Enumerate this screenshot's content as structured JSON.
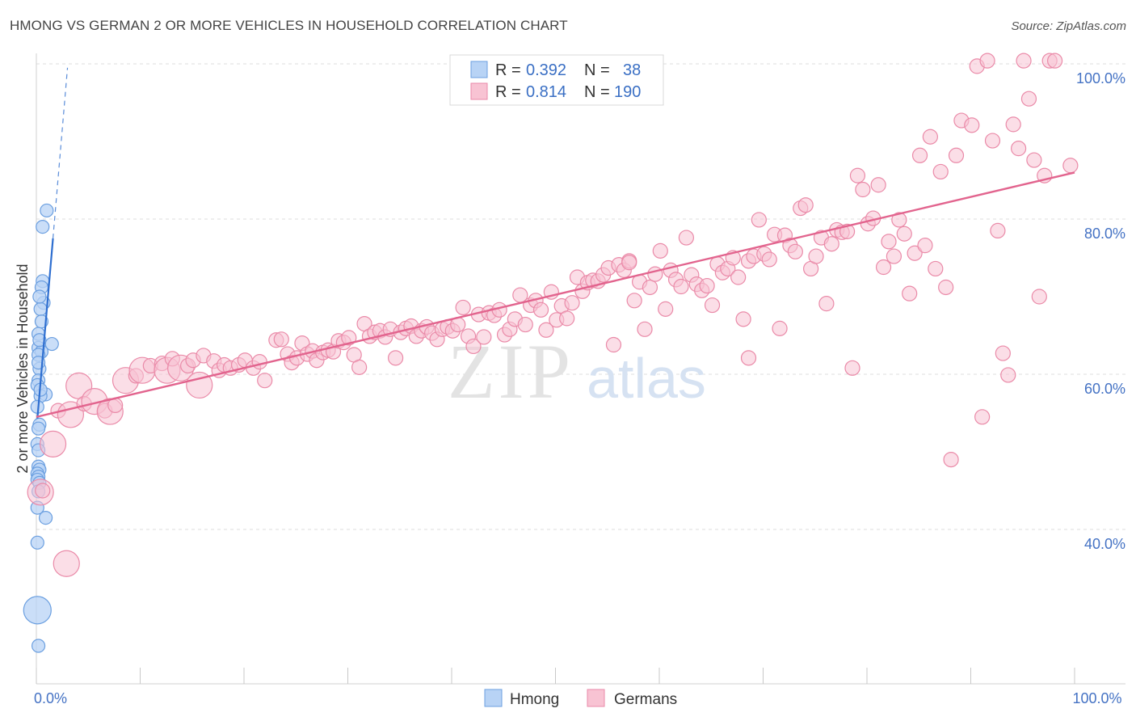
{
  "title": "HMONG VS GERMAN 2 OR MORE VEHICLES IN HOUSEHOLD CORRELATION CHART",
  "source": "Source: ZipAtlas.com",
  "watermark": {
    "zip": "ZIP",
    "atlas": "atlas"
  },
  "colors": {
    "hmong_fill": "#b8d3f5",
    "hmong_stroke": "#6b9fe0",
    "hmong_line": "#2f6fd0",
    "german_fill": "#f8c3d3",
    "german_stroke": "#ea8aa8",
    "german_line": "#e2648e",
    "grid": "#dcdcdc",
    "label": "#4472c4"
  },
  "legend": {
    "rows": [
      {
        "r_label": "R = ",
        "r_value": "0.392",
        "n_label": "N = ",
        "n_value": "38",
        "series": "hmong"
      },
      {
        "r_label": "R = ",
        "r_value": "0.814",
        "n_label": "N = ",
        "n_value": "190",
        "series": "german"
      }
    ]
  },
  "chart_data": {
    "type": "scatter",
    "title": "HMONG VS GERMAN 2 OR MORE VEHICLES IN HOUSEHOLD CORRELATION CHART",
    "xlabel": "",
    "ylabel": "2 or more Vehicles in Household",
    "xlim": [
      0,
      100
    ],
    "ylim": [
      18,
      102
    ],
    "x_ticks": [
      0,
      10,
      20,
      30,
      40,
      50,
      60,
      70,
      80,
      90,
      100
    ],
    "x_tick_labels": [
      {
        "value": 0,
        "label": "0.0%"
      },
      {
        "value": 100,
        "label": "100.0%"
      }
    ],
    "y_ticks": [
      {
        "value": 40,
        "label": "40.0%"
      },
      {
        "value": 60,
        "label": "60.0%"
      },
      {
        "value": 80,
        "label": "80.0%"
      },
      {
        "value": 100,
        "label": "100.0%"
      }
    ],
    "grid": true,
    "series": [
      {
        "name": "Hmong",
        "key": "hmong",
        "R": 0.392,
        "N": 38,
        "trend": {
          "x": [
            0.1,
            1.6
          ],
          "y": [
            54.3,
            77.5
          ]
        },
        "trend_ext": {
          "x": [
            1.6,
            3.0
          ],
          "y": [
            77.5,
            99.5
          ]
        },
        "points": [
          [
            1.0,
            81.1
          ],
          [
            0.6,
            79.0
          ],
          [
            0.6,
            72.0
          ],
          [
            0.5,
            71.2
          ],
          [
            0.7,
            69.2
          ],
          [
            0.4,
            68.4
          ],
          [
            1.5,
            63.9
          ],
          [
            0.2,
            65.2
          ],
          [
            0.2,
            63.4
          ],
          [
            0.5,
            62.9
          ],
          [
            0.2,
            62.5
          ],
          [
            0.3,
            60.7
          ],
          [
            0.2,
            59.2
          ],
          [
            0.1,
            58.6
          ],
          [
            0.9,
            57.4
          ],
          [
            0.4,
            57.2
          ],
          [
            0.3,
            53.5
          ],
          [
            0.2,
            53.0
          ],
          [
            0.1,
            51.0
          ],
          [
            0.2,
            48.1
          ],
          [
            0.3,
            47.7
          ],
          [
            0.1,
            47.2
          ],
          [
            0.2,
            46.8
          ],
          [
            0.1,
            46.4
          ],
          [
            0.3,
            46.0
          ],
          [
            0.9,
            41.5
          ],
          [
            0.1,
            38.3
          ],
          [
            0.1,
            29.6
          ],
          [
            0.2,
            25.0
          ],
          [
            0.3,
            64.4
          ],
          [
            0.2,
            61.5
          ],
          [
            0.4,
            58.0
          ],
          [
            0.1,
            55.8
          ],
          [
            0.2,
            50.2
          ],
          [
            0.5,
            66.8
          ],
          [
            0.3,
            70.0
          ],
          [
            0.1,
            42.8
          ],
          [
            0.2,
            44.9
          ]
        ],
        "big_points": [
          [
            0.1,
            29.6
          ]
        ]
      },
      {
        "name": "Germans",
        "key": "german",
        "R": 0.814,
        "N": 190,
        "trend": {
          "x": [
            0,
            100
          ],
          "y": [
            54.5,
            86.0
          ]
        },
        "points": [
          [
            0.4,
            44.8
          ],
          [
            0.6,
            45.0
          ],
          [
            1.6,
            51.0
          ],
          [
            2.9,
            35.6
          ],
          [
            2.1,
            55.3
          ],
          [
            3.3,
            54.8
          ],
          [
            4.1,
            58.5
          ],
          [
            4.6,
            56.2
          ],
          [
            5.6,
            56.5
          ],
          [
            6.6,
            55.3
          ],
          [
            7.1,
            55.2
          ],
          [
            7.6,
            56.0
          ],
          [
            8.6,
            59.2
          ],
          [
            9.6,
            59.8
          ],
          [
            10.2,
            60.5
          ],
          [
            11.0,
            61.1
          ],
          [
            12.1,
            61.4
          ],
          [
            12.6,
            60.5
          ],
          [
            13.1,
            62.0
          ],
          [
            13.9,
            60.8
          ],
          [
            14.6,
            61.1
          ],
          [
            15.1,
            61.8
          ],
          [
            15.7,
            58.6
          ],
          [
            16.1,
            62.4
          ],
          [
            17.1,
            61.7
          ],
          [
            17.6,
            60.5
          ],
          [
            18.1,
            61.2
          ],
          [
            18.7,
            60.8
          ],
          [
            19.5,
            61.2
          ],
          [
            20.1,
            61.8
          ],
          [
            20.9,
            60.8
          ],
          [
            21.5,
            61.6
          ],
          [
            22.0,
            59.2
          ],
          [
            23.1,
            64.4
          ],
          [
            23.6,
            64.5
          ],
          [
            24.2,
            62.6
          ],
          [
            24.6,
            61.5
          ],
          [
            25.1,
            62.1
          ],
          [
            25.6,
            64.0
          ],
          [
            26.1,
            62.6
          ],
          [
            26.6,
            63.0
          ],
          [
            27.0,
            61.8
          ],
          [
            27.6,
            62.8
          ],
          [
            28.1,
            63.1
          ],
          [
            28.6,
            62.9
          ],
          [
            29.1,
            64.3
          ],
          [
            29.6,
            64.1
          ],
          [
            30.1,
            64.7
          ],
          [
            30.6,
            62.5
          ],
          [
            31.1,
            60.9
          ],
          [
            31.6,
            66.5
          ],
          [
            32.1,
            64.9
          ],
          [
            32.6,
            65.4
          ],
          [
            33.1,
            65.6
          ],
          [
            33.6,
            64.8
          ],
          [
            34.1,
            65.8
          ],
          [
            34.6,
            62.1
          ],
          [
            35.1,
            65.4
          ],
          [
            35.6,
            65.9
          ],
          [
            36.1,
            66.2
          ],
          [
            36.6,
            64.9
          ],
          [
            37.1,
            65.6
          ],
          [
            37.6,
            66.1
          ],
          [
            38.1,
            65.3
          ],
          [
            38.6,
            64.5
          ],
          [
            39.1,
            65.8
          ],
          [
            39.6,
            66.1
          ],
          [
            40.1,
            65.6
          ],
          [
            40.6,
            66.4
          ],
          [
            41.1,
            68.6
          ],
          [
            41.6,
            64.9
          ],
          [
            42.1,
            63.6
          ],
          [
            42.6,
            67.7
          ],
          [
            43.1,
            64.8
          ],
          [
            43.6,
            67.9
          ],
          [
            44.1,
            67.6
          ],
          [
            44.6,
            68.3
          ],
          [
            45.1,
            65.1
          ],
          [
            45.6,
            65.8
          ],
          [
            46.1,
            67.1
          ],
          [
            46.6,
            70.2
          ],
          [
            47.1,
            66.4
          ],
          [
            47.6,
            68.9
          ],
          [
            48.1,
            69.5
          ],
          [
            48.6,
            68.3
          ],
          [
            49.1,
            65.7
          ],
          [
            49.6,
            70.6
          ],
          [
            50.1,
            67.0
          ],
          [
            50.6,
            68.8
          ],
          [
            51.1,
            67.2
          ],
          [
            51.6,
            69.2
          ],
          [
            52.1,
            72.5
          ],
          [
            52.6,
            70.7
          ],
          [
            53.1,
            71.8
          ],
          [
            53.6,
            72.1
          ],
          [
            54.1,
            72.0
          ],
          [
            54.6,
            72.8
          ],
          [
            55.1,
            73.7
          ],
          [
            55.6,
            63.8
          ],
          [
            56.1,
            74.1
          ],
          [
            56.6,
            73.4
          ],
          [
            57.1,
            74.6
          ],
          [
            57.6,
            69.5
          ],
          [
            58.1,
            71.9
          ],
          [
            58.6,
            65.8
          ],
          [
            59.1,
            71.2
          ],
          [
            59.6,
            72.9
          ],
          [
            60.1,
            75.9
          ],
          [
            60.6,
            68.4
          ],
          [
            61.1,
            73.4
          ],
          [
            61.6,
            72.2
          ],
          [
            62.1,
            71.3
          ],
          [
            62.6,
            77.6
          ],
          [
            63.1,
            72.8
          ],
          [
            63.6,
            71.6
          ],
          [
            64.1,
            70.8
          ],
          [
            64.6,
            71.4
          ],
          [
            65.1,
            68.9
          ],
          [
            65.6,
            74.2
          ],
          [
            66.1,
            73.1
          ],
          [
            66.6,
            73.6
          ],
          [
            67.1,
            75.0
          ],
          [
            67.6,
            72.5
          ],
          [
            68.1,
            67.1
          ],
          [
            68.6,
            74.6
          ],
          [
            69.1,
            75.2
          ],
          [
            69.6,
            79.9
          ],
          [
            70.1,
            75.5
          ],
          [
            70.6,
            74.8
          ],
          [
            71.1,
            78.0
          ],
          [
            71.6,
            65.9
          ],
          [
            72.1,
            77.9
          ],
          [
            72.6,
            76.6
          ],
          [
            73.1,
            75.8
          ],
          [
            73.6,
            81.4
          ],
          [
            74.1,
            81.8
          ],
          [
            74.6,
            73.6
          ],
          [
            75.1,
            75.2
          ],
          [
            75.6,
            77.6
          ],
          [
            76.1,
            69.1
          ],
          [
            76.6,
            76.8
          ],
          [
            77.1,
            78.6
          ],
          [
            77.6,
            78.3
          ],
          [
            78.1,
            78.4
          ],
          [
            78.6,
            60.8
          ],
          [
            79.1,
            85.6
          ],
          [
            79.6,
            83.8
          ],
          [
            80.1,
            79.4
          ],
          [
            80.6,
            80.1
          ],
          [
            81.1,
            84.4
          ],
          [
            81.6,
            73.8
          ],
          [
            82.1,
            77.1
          ],
          [
            82.6,
            75.2
          ],
          [
            83.1,
            79.9
          ],
          [
            83.6,
            78.1
          ],
          [
            84.1,
            70.4
          ],
          [
            84.6,
            75.6
          ],
          [
            85.1,
            88.2
          ],
          [
            85.6,
            76.6
          ],
          [
            86.1,
            90.6
          ],
          [
            86.6,
            73.6
          ],
          [
            87.1,
            86.1
          ],
          [
            87.6,
            71.2
          ],
          [
            88.1,
            49.0
          ],
          [
            88.6,
            88.2
          ],
          [
            89.1,
            92.7
          ],
          [
            90.1,
            92.1
          ],
          [
            90.6,
            99.7
          ],
          [
            91.1,
            54.5
          ],
          [
            91.6,
            100.4
          ],
          [
            92.1,
            90.1
          ],
          [
            92.6,
            78.5
          ],
          [
            93.1,
            62.7
          ],
          [
            93.6,
            59.9
          ],
          [
            94.1,
            92.2
          ],
          [
            94.6,
            89.1
          ],
          [
            95.1,
            100.4
          ],
          [
            95.6,
            95.5
          ],
          [
            96.1,
            87.6
          ],
          [
            96.6,
            70.0
          ],
          [
            97.1,
            85.6
          ],
          [
            97.6,
            100.4
          ],
          [
            98.1,
            100.4
          ],
          [
            99.6,
            86.9
          ],
          [
            68.6,
            62.1
          ],
          [
            57.1,
            74.4
          ]
        ],
        "big_points": [
          [
            2.9,
            35.6
          ],
          [
            4.1,
            58.5
          ],
          [
            3.3,
            54.8
          ],
          [
            5.6,
            56.5
          ],
          [
            7.1,
            55.2
          ],
          [
            8.6,
            59.2
          ],
          [
            10.2,
            60.5
          ],
          [
            12.6,
            60.5
          ],
          [
            13.9,
            60.8
          ],
          [
            15.7,
            58.6
          ],
          [
            1.6,
            51.0
          ],
          [
            0.4,
            44.8
          ]
        ]
      }
    ],
    "legend_entries": [
      "Hmong",
      "Germans"
    ],
    "legend_position": "top-center"
  }
}
